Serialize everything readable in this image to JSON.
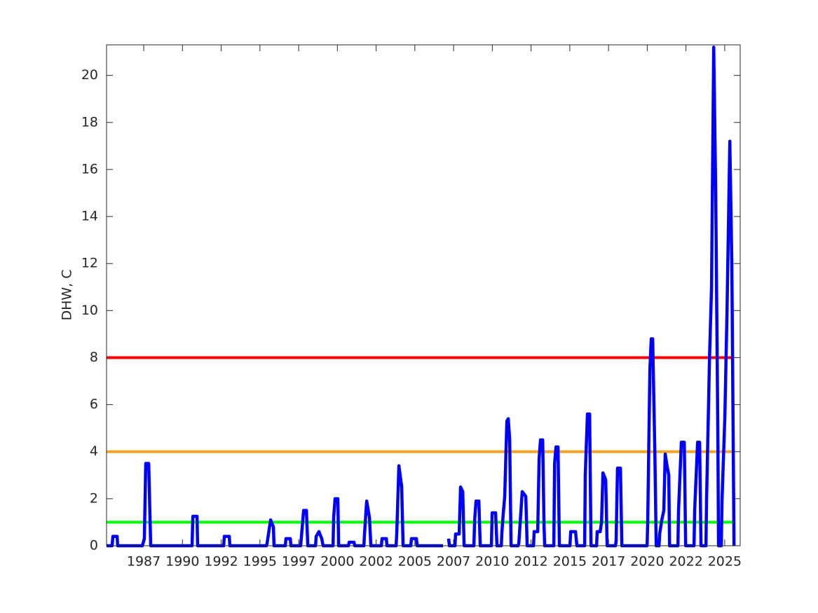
{
  "chart_data": {
    "type": "line",
    "ylabel": "DHW, C",
    "x": [
      1985.1,
      1985.46,
      1985.51,
      1985.78,
      1985.82,
      1987.41,
      1987.54,
      1987.63,
      1987.82,
      1987.95,
      1990.62,
      1990.67,
      1990.94,
      1990.98,
      1992.66,
      1992.7,
      1993.02,
      1993.06,
      1995.42,
      1995.46,
      1995.69,
      1995.87,
      1995.91,
      1996.64,
      1996.68,
      1996.96,
      1997.0,
      1997.63,
      1997.68,
      1997.82,
      1998.0,
      1998.09,
      1998.59,
      1998.63,
      1998.81,
      1998.99,
      1999.08,
      1999.72,
      1999.76,
      1999.85,
      2000.03,
      2000.08,
      2000.71,
      2000.76,
      2001.07,
      2001.12,
      2001.71,
      2001.75,
      2001.89,
      2002.07,
      2002.16,
      2002.84,
      2002.88,
      2003.16,
      2003.2,
      2003.79,
      2003.83,
      2003.97,
      2004.15,
      2004.24,
      2004.74,
      2004.78,
      2005.1,
      2005.15,
      2006.82,
      2006.95,
      2007.18,
      2007.23,
      2007.59,
      2007.63,
      2007.86,
      2007.95,
      2008.09,
      2008.18,
      2008.81,
      2008.86,
      2008.95,
      2009.13,
      2009.22,
      2009.94,
      2009.99,
      2010.21,
      2010.3,
      2010.58,
      2010.62,
      2010.71,
      2010.8,
      2010.94,
      2011.03,
      2011.12,
      2011.21,
      2011.66,
      2011.71,
      2011.93,
      2012.16,
      2012.25,
      2012.66,
      2012.7,
      2012.93,
      2013.02,
      2013.11,
      2013.25,
      2013.34,
      2013.38,
      2013.97,
      2014.02,
      2014.11,
      2014.24,
      2014.33,
      2015.01,
      2015.06,
      2015.37,
      2015.46,
      2015.96,
      2016.0,
      2016.14,
      2016.28,
      2016.37,
      2016.73,
      2016.77,
      2016.96,
      2017.05,
      2017.14,
      2017.32,
      2017.41,
      2017.95,
      2017.99,
      2018.08,
      2018.27,
      2018.36,
      2019.99,
      2020.03,
      2020.17,
      2020.26,
      2020.35,
      2020.49,
      2020.58,
      2020.76,
      2020.8,
      2020.94,
      2021.07,
      2021.16,
      2021.25,
      2021.39,
      2021.44,
      2021.98,
      2022.02,
      2022.2,
      2022.39,
      2022.48,
      2023.02,
      2023.06,
      2023.25,
      2023.38,
      2023.47,
      2023.79,
      2023.83,
      2024.02,
      2024.15,
      2024.29,
      2024.42,
      2024.56,
      2024.6,
      2024.78,
      2024.83,
      2025.01,
      2025.15,
      2025.33,
      2025.46,
      2025.6
    ],
    "series": [
      {
        "color": "#0000ff",
        "values": [
          0,
          0,
          0.4,
          0.4,
          0,
          0,
          0.3,
          3.5,
          3.5,
          0,
          0,
          1.25,
          1.25,
          0,
          0,
          0.4,
          0.4,
          0,
          0,
          0.1,
          1.1,
          0.8,
          0,
          0,
          0.3,
          0.3,
          0,
          0,
          0.4,
          1.5,
          1.5,
          0,
          0,
          0.4,
          0.6,
          0.3,
          0,
          0,
          1.2,
          2.0,
          2.0,
          0,
          0,
          0.15,
          0.15,
          0,
          0,
          0.5,
          1.9,
          1.2,
          0,
          0,
          0.3,
          0.3,
          0,
          0,
          0.5,
          3.4,
          2.5,
          0,
          0,
          0.3,
          0.3,
          0,
          0,
          null,
          0.3,
          0,
          0,
          0.5,
          0.5,
          2.5,
          2.3,
          0,
          0,
          1.1,
          1.9,
          1.9,
          0,
          0,
          1.4,
          1.4,
          0,
          0,
          0.6,
          1.4,
          2.1,
          5.3,
          5.4,
          4.5,
          0,
          0,
          0.1,
          2.3,
          2.1,
          0,
          0,
          0.6,
          0.6,
          3.7,
          4.5,
          4.5,
          0.8,
          0,
          0,
          3.5,
          4.2,
          4.2,
          0,
          0,
          0.6,
          0.6,
          0,
          0,
          3.0,
          5.6,
          5.6,
          0,
          0,
          0.6,
          0.6,
          1.0,
          3.1,
          2.8,
          0,
          0,
          0.2,
          3.3,
          3.3,
          0,
          0,
          1,
          7.5,
          8.8,
          8.8,
          4,
          0,
          0,
          0.5,
          1.1,
          1.5,
          3.9,
          3.5,
          3.0,
          0,
          0,
          1.5,
          4.4,
          4.4,
          0,
          0,
          1.5,
          4.4,
          4.4,
          0,
          0,
          2,
          8,
          11,
          21.2,
          15,
          4.5,
          0,
          0,
          2,
          5.5,
          10,
          17.2,
          12,
          0
        ]
      }
    ],
    "thresholds": [
      {
        "value": 1,
        "color": "#00ff00"
      },
      {
        "value": 4,
        "color": "#f5a623"
      },
      {
        "value": 8,
        "color": "#ff0000"
      }
    ],
    "xlim": [
      1985.1,
      2026.0
    ],
    "xticks": [
      {
        "value": 1987.5,
        "label": "1987"
      },
      {
        "value": 1990,
        "label": "1990"
      },
      {
        "value": 1992.5,
        "label": "1992"
      },
      {
        "value": 1995,
        "label": "1995"
      },
      {
        "value": 1997.5,
        "label": "1997"
      },
      {
        "value": 2000,
        "label": "2000"
      },
      {
        "value": 2002.5,
        "label": "2002"
      },
      {
        "value": 2005,
        "label": "2005"
      },
      {
        "value": 2007.5,
        "label": "2007"
      },
      {
        "value": 2010,
        "label": "2010"
      },
      {
        "value": 2012.5,
        "label": "2012"
      },
      {
        "value": 2015,
        "label": "2015"
      },
      {
        "value": 2017.5,
        "label": "2017"
      },
      {
        "value": 2020,
        "label": "2020"
      },
      {
        "value": 2022.5,
        "label": "2022"
      },
      {
        "value": 2025,
        "label": "2025"
      }
    ],
    "ylim": [
      0,
      21.3
    ],
    "yticks": [
      0,
      2,
      4,
      6,
      8,
      10,
      12,
      14,
      16,
      18,
      20
    ]
  }
}
